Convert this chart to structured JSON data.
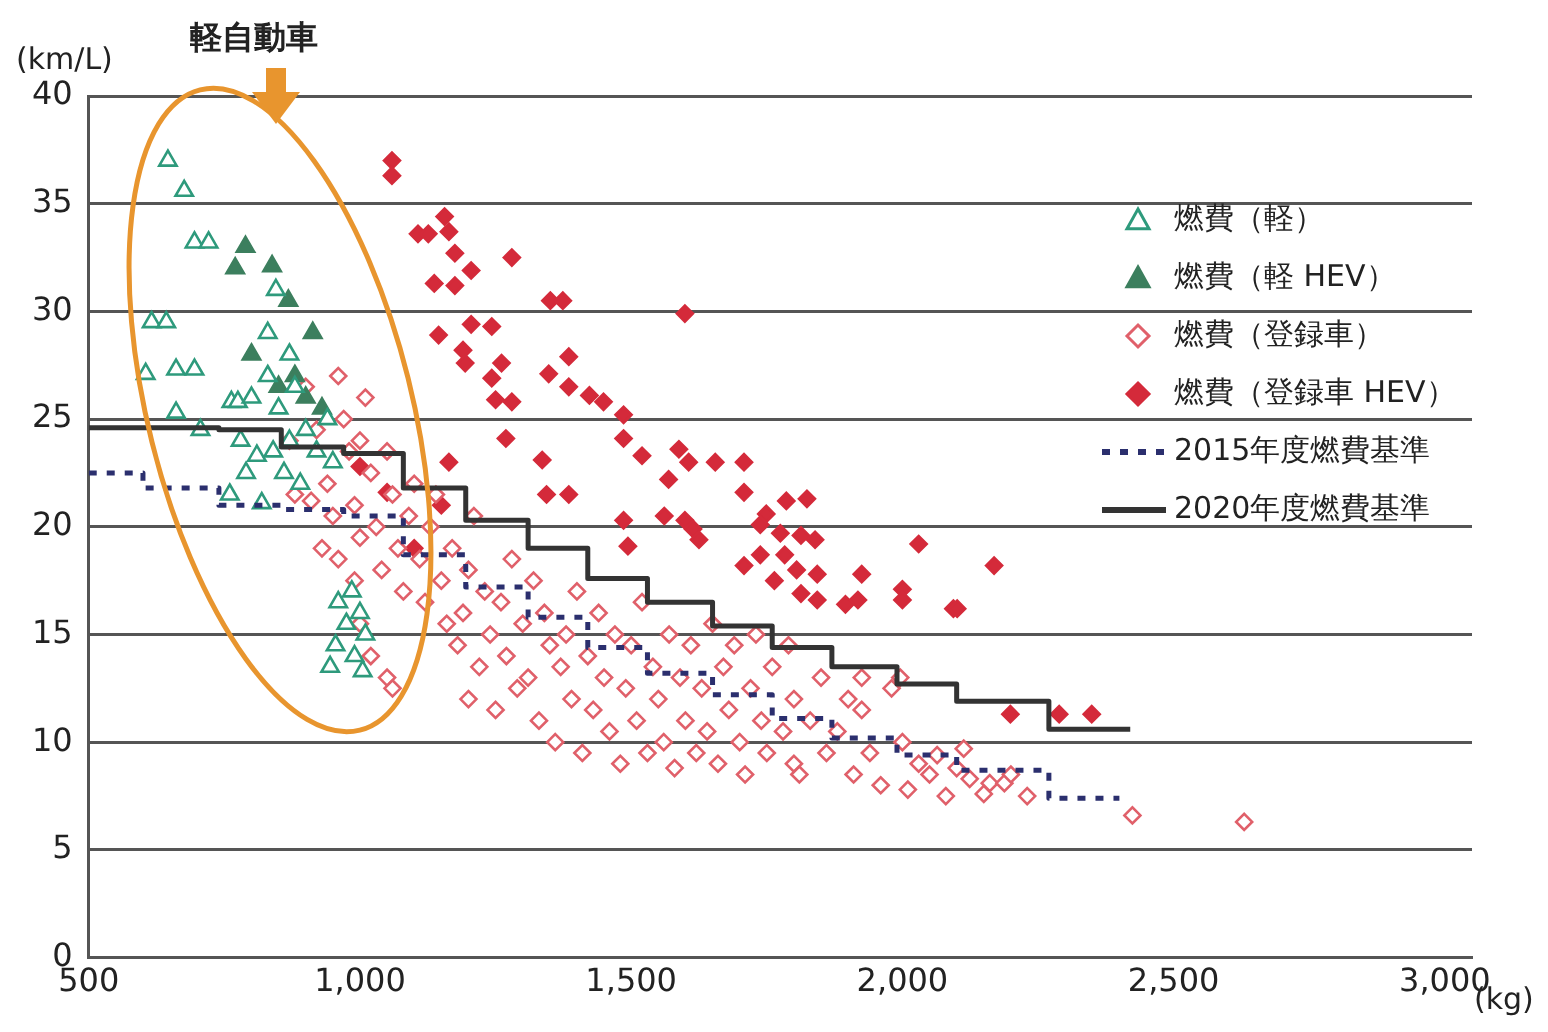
{
  "chart_data": {
    "type": "scatter",
    "xlabel": "(kg)",
    "ylabel": "(km/L)",
    "annotations": [
      "軽自動車"
    ],
    "xlim": [
      500,
      3050
    ],
    "xticks": [
      500,
      {
        "value": 1000,
        "label": "1,000"
      },
      {
        "value": 1500,
        "label": "1,500"
      },
      {
        "value": 2000,
        "label": "2,000"
      },
      {
        "value": 2500,
        "label": "2,500"
      },
      {
        "value": 3000,
        "label": "3,000"
      }
    ],
    "ylim": [
      0,
      40
    ],
    "yticks": [
      0,
      5,
      10,
      15,
      20,
      25,
      30,
      35,
      40
    ],
    "grid": "y",
    "legend": "top right",
    "series": [
      {
        "name": "燃費（軽）",
        "color": "#2e9a7c",
        "marker": "triangle",
        "x": [
          646,
          676,
          695,
          721,
          616,
          643,
          605,
          661,
          695,
          661,
          706,
          763,
          775,
          819,
          780,
          810,
          840,
          870,
          800,
          830,
          850,
          880,
          900,
          920,
          860,
          890,
          950,
          940,
          830,
          845,
          870,
          760,
          790,
          960,
          985,
          1000,
          975,
          1010,
          955,
          990,
          1005,
          945
        ],
        "values": [
          37.0,
          35.6,
          33.2,
          33.2,
          29.5,
          29.5,
          27.1,
          27.3,
          27.3,
          25.3,
          24.5,
          25.8,
          25.8,
          21.1,
          24.0,
          23.3,
          23.5,
          24.0,
          26.0,
          27.0,
          25.5,
          26.5,
          24.5,
          23.5,
          22.5,
          22.0,
          23.0,
          25.0,
          29.0,
          31.0,
          28.0,
          21.5,
          22.5,
          16.5,
          17.0,
          16.0,
          15.5,
          15.0,
          14.5,
          14.0,
          13.3,
          13.5
        ]
      },
      {
        "name": "燃費（軽 HEV）",
        "color": "#3c7f5e",
        "marker": "triangle",
        "x": [
          789,
          838,
          868,
          913,
          800,
          770,
          880,
          900,
          850,
          930
        ],
        "values": [
          33.0,
          32.1,
          30.5,
          29.0,
          28.0,
          32.0,
          27.0,
          26.0,
          26.5,
          25.5
        ]
      },
      {
        "name": "燃費（登録車）",
        "color": "#e0606a",
        "marker": "diamond",
        "x": [
          900,
          920,
          940,
          950,
          960,
          970,
          980,
          990,
          1000,
          1000,
          1010,
          1020,
          1030,
          1040,
          1050,
          1060,
          1070,
          1080,
          1000,
          1020,
          1050,
          1060,
          990,
          960,
          930,
          910,
          880,
          870,
          1090,
          1100,
          1110,
          1120,
          1130,
          1140,
          1150,
          1160,
          1170,
          1180,
          1190,
          1200,
          1200,
          1210,
          1220,
          1230,
          1240,
          1250,
          1260,
          1270,
          1280,
          1290,
          1300,
          1310,
          1320,
          1330,
          1340,
          1350,
          1360,
          1370,
          1380,
          1390,
          1400,
          1410,
          1420,
          1430,
          1440,
          1450,
          1460,
          1470,
          1480,
          1490,
          1500,
          1510,
          1520,
          1530,
          1540,
          1550,
          1560,
          1570,
          1580,
          1590,
          1600,
          1610,
          1620,
          1630,
          1640,
          1650,
          1660,
          1670,
          1680,
          1690,
          1700,
          1710,
          1720,
          1730,
          1740,
          1750,
          1760,
          1780,
          1790,
          1800,
          1800,
          1810,
          1830,
          1850,
          1860,
          1880,
          1900,
          1910,
          1925,
          1925,
          1940,
          1960,
          1980,
          1996,
          2000,
          2010,
          2030,
          2050,
          2064,
          2080,
          2100,
          2113,
          2124,
          2150,
          2161,
          2188,
          2200,
          2230,
          2424,
          2630
        ],
        "values": [
          26.5,
          24.5,
          22.0,
          20.5,
          27.0,
          25.0,
          23.5,
          21.0,
          19.5,
          24.0,
          26.0,
          22.5,
          20.0,
          18.0,
          23.5,
          21.5,
          19.0,
          17.0,
          15.5,
          14.0,
          13.0,
          12.5,
          17.5,
          18.5,
          19.0,
          21.2,
          21.5,
          24.0,
          20.5,
          22.0,
          18.5,
          16.5,
          20.0,
          21.5,
          17.5,
          15.5,
          19.0,
          14.5,
          16.0,
          12.0,
          18.0,
          20.5,
          13.5,
          17.0,
          15.0,
          11.5,
          16.5,
          14.0,
          18.5,
          12.5,
          15.5,
          13.0,
          17.5,
          11.0,
          16.0,
          14.5,
          10.0,
          13.5,
          15.0,
          12.0,
          17.0,
          9.5,
          14.0,
          11.5,
          16.0,
          13.0,
          10.5,
          15.0,
          9.0,
          12.5,
          14.5,
          11.0,
          16.5,
          9.5,
          13.5,
          12.0,
          10.0,
          15.0,
          8.8,
          13.0,
          11.0,
          14.5,
          9.5,
          12.5,
          10.5,
          15.5,
          9.0,
          13.5,
          11.5,
          14.5,
          10.0,
          8.5,
          12.5,
          15.0,
          11.0,
          9.5,
          13.5,
          10.5,
          14.5,
          12.0,
          9.0,
          8.5,
          11.0,
          13.0,
          9.5,
          10.5,
          12.0,
          8.5,
          13.0,
          11.5,
          9.5,
          8.0,
          12.5,
          13.0,
          10.0,
          7.8,
          9.0,
          8.5,
          9.4,
          7.5,
          8.8,
          9.7,
          8.3,
          7.6,
          8.1,
          8.1,
          8.5,
          7.5,
          6.6,
          6.3
        ]
      },
      {
        "name": "燃費（登録車 HEV）",
        "color": "#d42a3a",
        "marker": "diamond",
        "x": [
          1059,
          1059,
          1107,
          1126,
          1156,
          1164,
          1175,
          1280,
          1137,
          1175,
          1205,
          1351,
          1374,
          1599,
          1145,
          1205,
          1243,
          1190,
          1194,
          1261,
          1243,
          1348,
          1385,
          1385,
          1423,
          1449,
          1250,
          1280,
          1486,
          1486,
          1269,
          1520,
          1336,
          1588,
          1606,
          1569,
          1655,
          1708,
          1344,
          1385,
          1164,
          1708,
          1749,
          1786,
          1824,
          1486,
          1561,
          1599,
          1614,
          1625,
          1738,
          1775,
          1813,
          1839,
          1494,
          1708,
          1738,
          1783,
          1805,
          1843,
          1764,
          1813,
          1843,
          1925,
          1895,
          1918,
          2000,
          2000,
          2030,
          2094,
          2169,
          2101,
          1000,
          1050,
          1100,
          1150,
          2199,
          2289,
          2349
        ],
        "values": [
          37.0,
          36.3,
          33.6,
          33.6,
          34.4,
          33.7,
          32.7,
          32.5,
          31.3,
          31.2,
          31.9,
          30.5,
          30.5,
          29.9,
          28.9,
          29.4,
          29.3,
          28.2,
          27.6,
          27.6,
          26.9,
          27.1,
          27.9,
          26.5,
          26.1,
          25.8,
          25.9,
          25.8,
          25.2,
          24.1,
          24.1,
          23.3,
          23.1,
          23.6,
          23.0,
          22.2,
          23.0,
          23.0,
          21.5,
          21.5,
          23.0,
          21.6,
          20.6,
          21.2,
          21.3,
          20.3,
          20.5,
          20.3,
          19.9,
          19.4,
          20.1,
          19.7,
          19.6,
          19.4,
          19.1,
          18.2,
          18.7,
          18.7,
          18.0,
          17.8,
          17.5,
          16.9,
          16.6,
          17.8,
          16.4,
          16.6,
          17.1,
          16.6,
          19.2,
          16.2,
          18.2,
          16.2,
          22.8,
          21.6,
          19.0,
          21.0,
          11.3,
          11.3,
          11.3
        ]
      },
      {
        "type": "step",
        "name": "2015年度燃費基準",
        "color": "#2b2f6e",
        "line_style": "dashed",
        "x": [
          500,
          600,
          740,
          855,
          970,
          1080,
          1195,
          1310,
          1420,
          1530,
          1650,
          1760,
          1870,
          1990,
          2100,
          2270,
          2400
        ],
        "values": [
          22.5,
          21.8,
          21.0,
          20.8,
          20.5,
          18.7,
          17.2,
          15.8,
          14.4,
          13.2,
          12.2,
          11.1,
          10.2,
          9.4,
          8.7,
          7.4,
          7.4
        ]
      },
      {
        "type": "step",
        "name": "2020年度燃費基準",
        "color": "#333333",
        "line_style": "solid",
        "x": [
          500,
          740,
          855,
          970,
          1080,
          1195,
          1310,
          1420,
          1530,
          1650,
          1760,
          1870,
          1990,
          2100,
          2270,
          2420
        ],
        "values": [
          24.6,
          24.5,
          23.7,
          23.4,
          21.8,
          20.3,
          19.0,
          17.6,
          16.5,
          15.4,
          14.4,
          13.5,
          12.7,
          11.9,
          10.6,
          10.6
        ]
      }
    ]
  }
}
